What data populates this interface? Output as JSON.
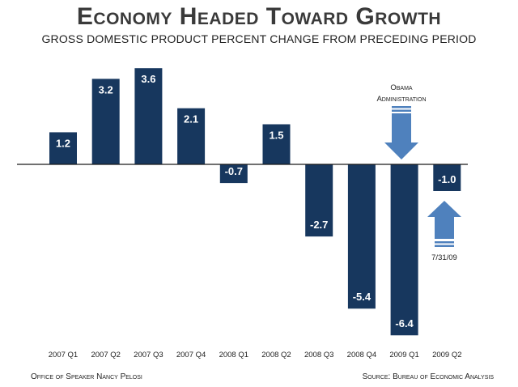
{
  "header": {
    "title": "Economy Headed Toward Growth",
    "subtitle": "GROSS DOMESTIC PRODUCT PERCENT CHANGE FROM PRECEDING PERIOD"
  },
  "annotations": {
    "obama_line1": "Obama",
    "obama_line2": "Administration",
    "date": "7/31/09"
  },
  "footer": {
    "left": "Office of Speaker Nancy Pelosi",
    "right": "Source: Bureau of Economic Analysis"
  },
  "colors": {
    "bar": "#17375e",
    "arrow": "#4f81bd",
    "axis": "#1a1a1a"
  },
  "chart_data": {
    "type": "bar",
    "title": "Economy Headed Toward Growth",
    "subtitle": "GROSS DOMESTIC PRODUCT PERCENT CHANGE FROM PRECEDING PERIOD",
    "categories": [
      "2007 Q1",
      "2007 Q2",
      "2007 Q3",
      "2007 Q4",
      "2008 Q1",
      "2008 Q2",
      "2008 Q3",
      "2008 Q4",
      "2009 Q1",
      "2009 Q2"
    ],
    "values": [
      1.2,
      3.2,
      3.6,
      2.1,
      -0.7,
      1.5,
      -2.7,
      -5.4,
      -6.4,
      -1.0
    ],
    "data_labels": [
      "1.2",
      "3.2",
      "3.6",
      "2.1",
      "-0.7",
      "1.5",
      "-2.7",
      "-5.4",
      "-6.4",
      "-1.0"
    ],
    "xlabel": "",
    "ylabel": "",
    "ylim": [
      -6.4,
      3.6
    ],
    "grid": false
  }
}
